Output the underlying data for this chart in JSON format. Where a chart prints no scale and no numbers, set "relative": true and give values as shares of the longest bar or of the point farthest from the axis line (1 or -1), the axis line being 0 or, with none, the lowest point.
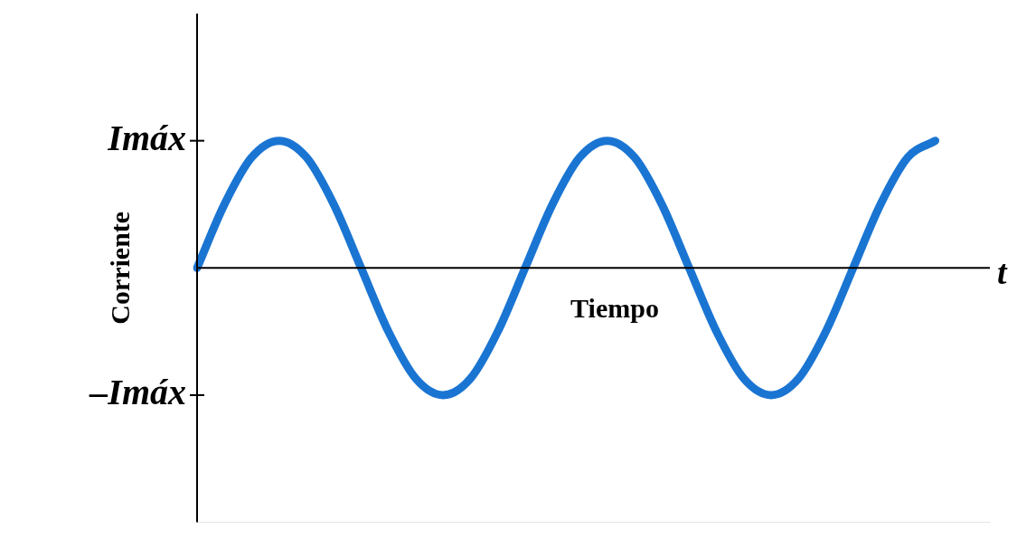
{
  "chart_data": {
    "type": "line",
    "xlabel": "Tiempo",
    "ylabel": "Corriente",
    "relative": true,
    "annotations": [
      "t",
      "Imáx",
      "–Imáx"
    ],
    "categories": [
      null,
      null,
      null,
      null,
      null,
      null,
      null,
      null,
      null,
      null,
      null,
      null,
      null,
      null,
      null,
      null,
      null,
      null,
      null,
      null,
      null,
      null,
      null,
      null,
      null,
      null,
      null,
      null,
      null,
      null
    ],
    "series": [
      {
        "color": "#1a75d2",
        "values": [
          0,
          0.5,
          0.87,
          1,
          0.87,
          0.5,
          0,
          -0.5,
          -0.87,
          -1,
          -0.87,
          -0.5,
          0,
          0.5,
          0.87,
          1,
          0.87,
          0.5,
          0,
          -0.5,
          -0.87,
          -1,
          -0.87,
          -0.5,
          0,
          0.5,
          0.87,
          1,
          null,
          null
        ]
      }
    ],
    "marker": "none",
    "line_style": "solid"
  }
}
